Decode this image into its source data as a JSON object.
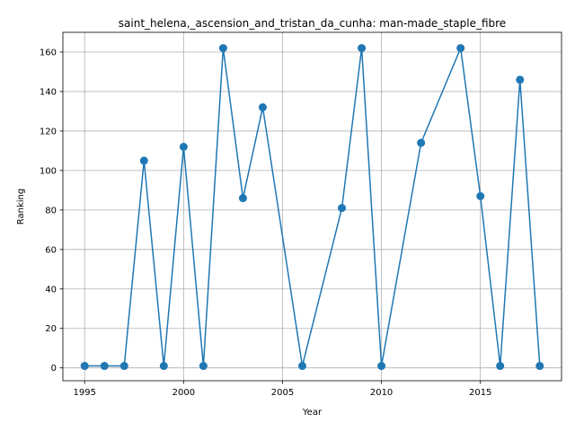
{
  "chart_data": {
    "type": "line",
    "title": "saint_helena,_ascension_and_tristan_da_cunha: man-made_staple_fibre",
    "xlabel": "Year",
    "ylabel": "Ranking",
    "xlim": [
      1993.9,
      2019.1
    ],
    "ylim": [
      -6.5,
      170
    ],
    "xticks": [
      1995,
      2000,
      2005,
      2010,
      2015
    ],
    "yticks": [
      0,
      20,
      40,
      60,
      80,
      100,
      120,
      140,
      160
    ],
    "grid": true,
    "color": "#1f77b4",
    "series": [
      {
        "x": [
          1995,
          1996,
          1997,
          1998,
          1999,
          2000,
          2001,
          2002,
          2003,
          2004,
          2006,
          2008,
          2009,
          2010,
          2012,
          2014,
          2015,
          2016,
          2017,
          2018
        ],
        "values": [
          1,
          1,
          1,
          105,
          1,
          112,
          1,
          162,
          86,
          132,
          1,
          81,
          162,
          1,
          114,
          162,
          87,
          1,
          146,
          1
        ]
      }
    ]
  }
}
